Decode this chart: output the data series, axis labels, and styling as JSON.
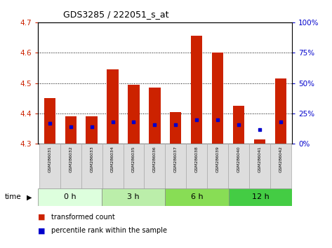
{
  "title": "GDS3285 / 222051_s_at",
  "samples": [
    "GSM286031",
    "GSM286032",
    "GSM286033",
    "GSM286034",
    "GSM286035",
    "GSM286036",
    "GSM286037",
    "GSM286038",
    "GSM286039",
    "GSM286040",
    "GSM286041",
    "GSM286042"
  ],
  "red_values": [
    4.45,
    4.39,
    4.39,
    4.545,
    4.495,
    4.485,
    4.405,
    4.655,
    4.6,
    4.425,
    4.315,
    4.515
  ],
  "blue_pct": [
    17,
    14,
    14,
    18,
    18,
    16,
    16,
    20,
    20,
    16,
    12,
    18
  ],
  "ymin": 4.3,
  "ymax": 4.7,
  "yticks": [
    4.3,
    4.4,
    4.5,
    4.6,
    4.7
  ],
  "right_yticks": [
    0,
    25,
    50,
    75,
    100
  ],
  "groups": [
    {
      "label": "0 h",
      "start": 0,
      "end": 3,
      "color": "#ddffdd"
    },
    {
      "label": "3 h",
      "start": 3,
      "end": 6,
      "color": "#bbeeaa"
    },
    {
      "label": "6 h",
      "start": 6,
      "end": 9,
      "color": "#88dd55"
    },
    {
      "label": "12 h",
      "start": 9,
      "end": 12,
      "color": "#44cc44"
    }
  ],
  "bar_color": "#cc2200",
  "dot_color": "#0000cc",
  "bar_bottom": 4.3,
  "bar_width": 0.55,
  "tick_label_color_left": "#cc2200",
  "tick_label_color_right": "#0000cc",
  "sample_box_color": "#dddddd",
  "grid_color": "#000000"
}
